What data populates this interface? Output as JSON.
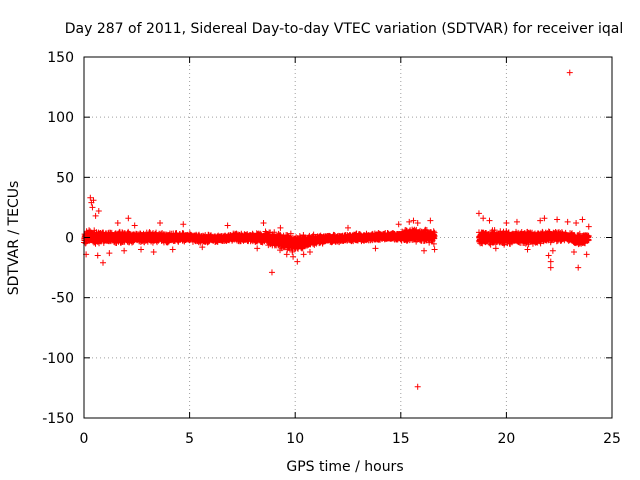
{
  "chart_data": {
    "type": "scatter",
    "title": "Day 287 of 2011, Sidereal Day-to-day VTEC variation (SDTVAR) for receiver iqal",
    "xlabel": "GPS time / hours",
    "ylabel": "SDTVAR / TECUs",
    "xlim": [
      0,
      25
    ],
    "ylim": [
      -150,
      150
    ],
    "xticks": [
      0,
      5,
      10,
      15,
      20,
      25
    ],
    "yticks": [
      -150,
      -100,
      -50,
      0,
      50,
      100,
      150
    ],
    "xtick_labels": [
      "0",
      "5",
      "10",
      "15",
      "20",
      "25"
    ],
    "ytick_labels": [
      "-150",
      "-100",
      "-50",
      "0",
      "50",
      "100",
      "150"
    ],
    "grid": true,
    "marker": "+",
    "color": "#ff0000",
    "bands": [
      {
        "x": [
          0.0,
          0.5,
          1.0,
          1.5,
          2.0,
          2.5,
          3.0,
          3.5,
          4.0,
          4.5,
          5.0,
          5.5,
          6.0,
          6.5,
          7.0,
          7.5,
          8.0,
          8.5,
          9.0,
          9.5,
          10.0,
          10.5,
          11.0,
          11.5,
          12.0,
          12.5,
          13.0,
          13.5,
          14.0,
          14.5,
          15.0,
          15.5,
          16.0,
          16.5,
          16.6
        ],
        "amplitude": [
          7,
          7,
          6,
          6,
          6,
          5,
          5,
          5,
          5,
          5,
          4,
          4,
          4,
          3,
          4,
          4,
          4,
          6,
          8,
          8,
          9,
          6,
          5,
          4,
          4,
          4,
          4,
          4,
          4,
          4,
          5,
          6,
          7,
          7,
          6
        ],
        "offset": [
          0,
          0,
          0,
          0,
          0,
          0,
          0,
          0,
          0,
          0,
          0,
          -1,
          -1,
          -1,
          0,
          0,
          0,
          0,
          -2,
          -4,
          -5,
          -3,
          -2,
          -1,
          -1,
          0,
          0,
          0,
          1,
          1,
          1,
          2,
          1,
          1,
          0
        ]
      },
      {
        "x": [
          18.7,
          19.0,
          19.5,
          20.0,
          20.5,
          21.0,
          21.5,
          22.0,
          22.5,
          23.0,
          23.5,
          23.9
        ],
        "amplitude": [
          7,
          7,
          7,
          7,
          7,
          7,
          6,
          6,
          5,
          5,
          6,
          5
        ],
        "offset": [
          0,
          0,
          0,
          0,
          0,
          0,
          0,
          1,
          1,
          0,
          -2,
          0
        ]
      }
    ],
    "outliers": [
      {
        "x": 0.3,
        "y": 33
      },
      {
        "x": 0.35,
        "y": 29
      },
      {
        "x": 0.45,
        "y": 31
      },
      {
        "x": 0.4,
        "y": 25
      },
      {
        "x": 0.55,
        "y": 18
      },
      {
        "x": 0.7,
        "y": 22
      },
      {
        "x": 0.65,
        "y": -15
      },
      {
        "x": 0.9,
        "y": -21
      },
      {
        "x": 0.1,
        "y": -14
      },
      {
        "x": 1.2,
        "y": -13
      },
      {
        "x": 1.6,
        "y": 12
      },
      {
        "x": 1.9,
        "y": -11
      },
      {
        "x": 2.1,
        "y": 16
      },
      {
        "x": 2.4,
        "y": 10
      },
      {
        "x": 2.7,
        "y": -10
      },
      {
        "x": 3.3,
        "y": -12
      },
      {
        "x": 3.6,
        "y": 12
      },
      {
        "x": 4.2,
        "y": -10
      },
      {
        "x": 4.7,
        "y": 11
      },
      {
        "x": 5.6,
        "y": -8
      },
      {
        "x": 6.8,
        "y": 10
      },
      {
        "x": 8.2,
        "y": -9
      },
      {
        "x": 8.5,
        "y": 12
      },
      {
        "x": 8.9,
        "y": -29
      },
      {
        "x": 9.3,
        "y": 8
      },
      {
        "x": 9.6,
        "y": -14
      },
      {
        "x": 9.9,
        "y": -16
      },
      {
        "x": 10.1,
        "y": -20
      },
      {
        "x": 10.4,
        "y": -14
      },
      {
        "x": 10.7,
        "y": -12
      },
      {
        "x": 12.5,
        "y": 8
      },
      {
        "x": 13.8,
        "y": -9
      },
      {
        "x": 14.9,
        "y": 11
      },
      {
        "x": 15.4,
        "y": 13
      },
      {
        "x": 15.6,
        "y": 14
      },
      {
        "x": 15.8,
        "y": 12
      },
      {
        "x": 15.8,
        "y": -124
      },
      {
        "x": 16.1,
        "y": -11
      },
      {
        "x": 16.4,
        "y": 14
      },
      {
        "x": 16.6,
        "y": -10
      },
      {
        "x": 18.7,
        "y": 20
      },
      {
        "x": 18.9,
        "y": 16
      },
      {
        "x": 19.2,
        "y": 14
      },
      {
        "x": 19.5,
        "y": -9
      },
      {
        "x": 20.0,
        "y": 12
      },
      {
        "x": 20.5,
        "y": 13
      },
      {
        "x": 21.0,
        "y": -10
      },
      {
        "x": 21.6,
        "y": 14
      },
      {
        "x": 21.8,
        "y": 16
      },
      {
        "x": 22.0,
        "y": -15
      },
      {
        "x": 22.1,
        "y": -20
      },
      {
        "x": 22.1,
        "y": -25
      },
      {
        "x": 22.2,
        "y": -11
      },
      {
        "x": 22.4,
        "y": 15
      },
      {
        "x": 22.9,
        "y": 13
      },
      {
        "x": 23.0,
        "y": 137
      },
      {
        "x": 23.2,
        "y": -12
      },
      {
        "x": 23.3,
        "y": 12
      },
      {
        "x": 23.4,
        "y": -25
      },
      {
        "x": 23.6,
        "y": 15
      },
      {
        "x": 23.8,
        "y": -14
      },
      {
        "x": 23.9,
        "y": 9
      }
    ]
  }
}
